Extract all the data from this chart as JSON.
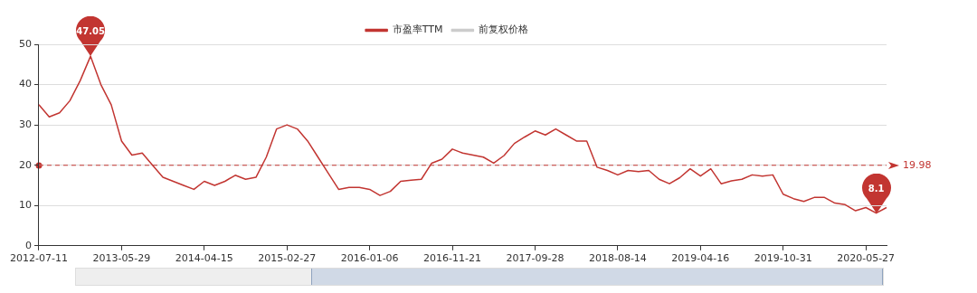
{
  "chart_data": {
    "type": "line",
    "categories": [
      "2012-07-11",
      null,
      null,
      null,
      null,
      null,
      null,
      null,
      "2013-05-29",
      null,
      null,
      null,
      null,
      null,
      null,
      null,
      "2014-04-15",
      null,
      null,
      null,
      null,
      null,
      null,
      null,
      "2015-02-27",
      null,
      null,
      null,
      null,
      null,
      null,
      null,
      "2016-01-06",
      null,
      null,
      null,
      null,
      null,
      null,
      null,
      "2016-11-21",
      null,
      null,
      null,
      null,
      null,
      null,
      null,
      "2017-09-28",
      null,
      null,
      null,
      null,
      null,
      null,
      null,
      "2018-08-14",
      null,
      null,
      null,
      null,
      null,
      null,
      null,
      "2019-04-16",
      null,
      null,
      null,
      null,
      null,
      null,
      null,
      "2019-10-31",
      null,
      null,
      null,
      null,
      null,
      null,
      null,
      "2020-05-27",
      null,
      null
    ],
    "series": [
      {
        "name": "市盈率TTM",
        "color": "#c23531",
        "values": [
          35,
          32,
          33,
          36,
          41,
          47.05,
          40,
          35,
          26,
          22.5,
          23,
          20,
          17,
          16,
          15,
          14,
          16,
          15,
          16,
          17.5,
          16.5,
          17,
          22,
          29,
          30,
          29,
          26,
          22,
          18,
          14,
          14.5,
          14.5,
          14,
          12.5,
          13.5,
          16,
          16.3,
          16.5,
          20.5,
          21.5,
          24,
          23,
          22.5,
          22,
          20.5,
          22.4,
          25.4,
          27,
          28.5,
          27.5,
          29,
          27.5,
          26,
          26,
          19.5,
          18.7,
          17.6,
          18.7,
          18.4,
          18.7,
          16.5,
          15.4,
          16.9,
          19.1,
          17.3,
          19.1,
          15.4,
          16.1,
          16.5,
          17.6,
          17.3,
          17.6,
          12.8,
          11.7,
          11,
          12,
          12,
          10.6,
          10.2,
          8.7,
          9.5,
          8.1,
          9.5
        ]
      },
      {
        "name": "前复权价格",
        "color": "#cccccc",
        "values": [
          null,
          null,
          null,
          null,
          null,
          null,
          null,
          null,
          null,
          null,
          null,
          null,
          null,
          null,
          null,
          null,
          null,
          null,
          null,
          null,
          null,
          null,
          null,
          null,
          null,
          null,
          null,
          null,
          null,
          null,
          null,
          null,
          null,
          null,
          null,
          null,
          null,
          null,
          null,
          null,
          null,
          null,
          null,
          null,
          null,
          null,
          null,
          null,
          null,
          null,
          null,
          null,
          null,
          null,
          null,
          null,
          null,
          null,
          null,
          null,
          null,
          null,
          null,
          null,
          null,
          null,
          null,
          null,
          null,
          null,
          null,
          null,
          null,
          null,
          null,
          null,
          null,
          null,
          null,
          null,
          null,
          null,
          null
        ]
      }
    ],
    "ylim": [
      0,
      50
    ],
    "yticks": [
      0,
      10,
      20,
      30,
      40,
      50
    ],
    "grid": "y",
    "legend": "top",
    "marker": "none",
    "ref_lines": [
      {
        "axis": "y",
        "value": 19.98,
        "label": "19.98",
        "color": "#c23531",
        "line_style": "dashed"
      }
    ],
    "annotations": [
      {
        "text": "47.05",
        "y": 47.05
      },
      {
        "text": "8.1",
        "y": 8.1
      }
    ]
  }
}
